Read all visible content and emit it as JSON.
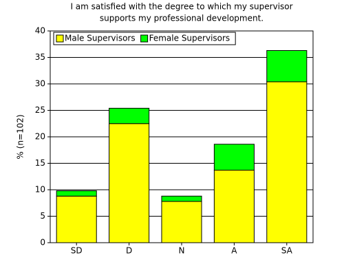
{
  "chart_data": {
    "type": "stacked_bar",
    "title": [
      "I am satisfied with the degree to which my supervisor",
      "supports my professional development."
    ],
    "y_label": "% (n=102)",
    "categories": [
      "SD",
      "D",
      "N",
      "A",
      "SA"
    ],
    "series": [
      {
        "name": "Male Supervisors",
        "color": "#ffff00",
        "values": [
          8.8,
          22.5,
          7.8,
          13.7,
          30.4
        ]
      },
      {
        "name": "Female Supervisors",
        "color": "#00ff00",
        "values": [
          1.0,
          2.9,
          1.0,
          4.9,
          5.9
        ]
      }
    ],
    "ylim": [
      0,
      40
    ],
    "yticks": [
      0,
      5,
      10,
      15,
      20,
      25,
      30,
      35,
      40
    ],
    "grid": true,
    "legend": "top-left"
  }
}
